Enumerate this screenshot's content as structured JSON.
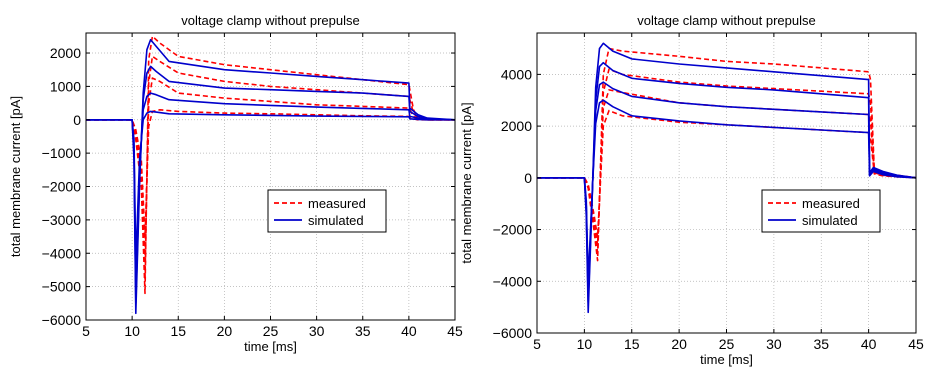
{
  "chart_data": [
    {
      "type": "line",
      "title": "voltage clamp without prepulse",
      "xlabel": "time [ms]",
      "ylabel": "total membrane current [pA]",
      "xlim": [
        5,
        45
      ],
      "ylim": [
        -6000,
        2600
      ],
      "xticks": [
        5,
        10,
        15,
        20,
        25,
        30,
        35,
        40,
        45
      ],
      "yticks": [
        -6000,
        -5000,
        -4000,
        -3000,
        -2000,
        -1000,
        0,
        1000,
        2000
      ],
      "ytick_labels": [
        "−6000",
        "−5000",
        "−4000",
        "−3000",
        "−2000",
        "−1000",
        "0",
        "1000",
        "2000"
      ],
      "grid": true,
      "legend": {
        "position": "center-right",
        "entries": [
          {
            "label": "measured",
            "style": "dashed",
            "color": "#ff0000"
          },
          {
            "label": "simulated",
            "style": "solid",
            "color": "#0000cc"
          }
        ]
      },
      "series": [
        {
          "style": "dashed",
          "color": "#ff0000",
          "x": [
            5,
            10,
            10.4,
            11,
            11.4,
            11.8,
            12.2,
            13,
            15,
            20,
            25,
            30,
            35,
            40,
            40.5,
            41,
            42,
            45
          ],
          "y": [
            0,
            0,
            -600,
            -2000,
            -5200,
            1800,
            2500,
            2300,
            1900,
            1650,
            1500,
            1350,
            1200,
            1050,
            300,
            50,
            0,
            0
          ]
        },
        {
          "style": "dashed",
          "color": "#ff0000",
          "x": [
            5,
            10,
            10.4,
            11,
            11.4,
            11.8,
            12.2,
            13,
            15,
            20,
            25,
            30,
            35,
            40,
            40.5,
            41,
            42,
            45
          ],
          "y": [
            0,
            0,
            -500,
            -1800,
            -4800,
            1100,
            1900,
            1750,
            1400,
            1150,
            1000,
            900,
            800,
            700,
            200,
            40,
            0,
            0
          ]
        },
        {
          "style": "dashed",
          "color": "#ff0000",
          "x": [
            5,
            10,
            10.4,
            11,
            11.4,
            11.8,
            12.2,
            13,
            15,
            20,
            25,
            30,
            35,
            40,
            40.5,
            41,
            42,
            45
          ],
          "y": [
            0,
            0,
            -400,
            -1500,
            -4200,
            500,
            1250,
            1150,
            800,
            650,
            550,
            450,
            400,
            350,
            100,
            20,
            0,
            0
          ]
        },
        {
          "style": "dashed",
          "color": "#ff0000",
          "x": [
            5,
            10,
            10.4,
            11,
            11.4,
            11.8,
            12.2,
            13,
            15,
            20,
            25,
            30,
            35,
            40,
            40.5,
            41,
            42,
            45
          ],
          "y": [
            0,
            0,
            -300,
            -1200,
            -3500,
            -200,
            250,
            300,
            250,
            200,
            180,
            150,
            120,
            100,
            30,
            0,
            0,
            0
          ]
        },
        {
          "style": "solid",
          "color": "#0000cc",
          "x": [
            5,
            10,
            10.2,
            10.4,
            10.8,
            11.2,
            11.6,
            12,
            12.6,
            14,
            20,
            25,
            30,
            35,
            40,
            40.1,
            41,
            42,
            45
          ],
          "y": [
            0,
            0,
            -1200,
            -5800,
            -2000,
            800,
            2100,
            2400,
            2200,
            1750,
            1500,
            1400,
            1300,
            1200,
            1100,
            350,
            150,
            50,
            0
          ]
        },
        {
          "style": "solid",
          "color": "#0000cc",
          "x": [
            5,
            10,
            10.2,
            10.4,
            10.8,
            11.2,
            11.6,
            12,
            12.6,
            14,
            20,
            25,
            30,
            35,
            40,
            40.1,
            41,
            42,
            45
          ],
          "y": [
            0,
            0,
            -1000,
            -5500,
            -1800,
            600,
            1400,
            1600,
            1450,
            1150,
            950,
            900,
            850,
            800,
            700,
            250,
            100,
            30,
            0
          ]
        },
        {
          "style": "solid",
          "color": "#0000cc",
          "x": [
            5,
            10,
            10.2,
            10.4,
            10.8,
            11.2,
            11.6,
            12,
            12.6,
            14,
            20,
            25,
            30,
            35,
            40,
            40.1,
            41,
            42,
            45
          ],
          "y": [
            0,
            0,
            -800,
            -5000,
            -1500,
            300,
            700,
            800,
            750,
            600,
            480,
            430,
            380,
            340,
            300,
            100,
            50,
            10,
            0
          ]
        },
        {
          "style": "solid",
          "color": "#0000cc",
          "x": [
            5,
            10,
            10.2,
            10.4,
            10.8,
            11.2,
            11.6,
            12,
            12.6,
            14,
            20,
            25,
            30,
            35,
            40,
            40.1,
            41,
            42,
            45
          ],
          "y": [
            0,
            0,
            -600,
            -4300,
            -1200,
            0,
            200,
            250,
            230,
            180,
            150,
            130,
            110,
            100,
            90,
            30,
            10,
            0,
            0
          ]
        }
      ]
    },
    {
      "type": "line",
      "title": "voltage clamp without prepulse",
      "xlabel": "time [ms]",
      "ylabel": "total membrane current [pA]",
      "xlim": [
        5,
        45
      ],
      "ylim": [
        -6000,
        5600
      ],
      "xticks": [
        5,
        10,
        15,
        20,
        25,
        30,
        35,
        40,
        45
      ],
      "yticks": [
        -6000,
        -4000,
        -2000,
        0,
        2000,
        4000
      ],
      "ytick_labels": [
        "−6000",
        "−4000",
        "−2000",
        "0",
        "2000",
        "4000"
      ],
      "grid": true,
      "legend": {
        "position": "lower-right",
        "entries": [
          {
            "label": "measured",
            "style": "dashed",
            "color": "#ff0000"
          },
          {
            "label": "simulated",
            "style": "solid",
            "color": "#0000cc"
          }
        ]
      },
      "series": [
        {
          "style": "dashed",
          "color": "#ff0000",
          "x": [
            5,
            10,
            10.4,
            11,
            11.4,
            12,
            12.6,
            14,
            20,
            25,
            30,
            35,
            40,
            40.2,
            40.6,
            41.5,
            43,
            45
          ],
          "y": [
            0,
            0,
            -400,
            -2000,
            -3200,
            4000,
            5000,
            4900,
            4700,
            4500,
            4400,
            4250,
            4100,
            3800,
            300,
            200,
            100,
            0
          ]
        },
        {
          "style": "dashed",
          "color": "#ff0000",
          "x": [
            5,
            10,
            10.4,
            11,
            11.4,
            12,
            12.6,
            14,
            20,
            25,
            30,
            35,
            40,
            40.2,
            40.6,
            41.5,
            43,
            45
          ],
          "y": [
            0,
            0,
            -350,
            -1800,
            -2900,
            3300,
            4200,
            4000,
            3700,
            3550,
            3450,
            3350,
            3250,
            2900,
            250,
            150,
            80,
            0
          ]
        },
        {
          "style": "dashed",
          "color": "#ff0000",
          "x": [
            5,
            10,
            10.4,
            11,
            11.4,
            12,
            12.6,
            14,
            20,
            25,
            30,
            35,
            40,
            40.2,
            40.6,
            41.5,
            43,
            45
          ],
          "y": [
            0,
            0,
            -300,
            -1600,
            -2600,
            2700,
            3400,
            3300,
            2900,
            2750,
            2650,
            2550,
            2450,
            2200,
            200,
            100,
            50,
            0
          ]
        },
        {
          "style": "dashed",
          "color": "#ff0000",
          "x": [
            5,
            10,
            10.4,
            11,
            11.4,
            12,
            12.6,
            14,
            20,
            25,
            30,
            35,
            40,
            40.2,
            40.6,
            41.5,
            43,
            45
          ],
          "y": [
            0,
            0,
            -250,
            -1400,
            -2300,
            2000,
            2600,
            2400,
            2150,
            2050,
            1950,
            1850,
            1750,
            1550,
            150,
            80,
            40,
            0
          ]
        },
        {
          "style": "solid",
          "color": "#0000cc",
          "x": [
            5,
            10,
            10.2,
            10.4,
            10.8,
            11.2,
            11.6,
            12,
            13,
            15,
            20,
            25,
            30,
            35,
            40,
            40.1,
            40.5,
            41.5,
            43,
            45
          ],
          "y": [
            0,
            0,
            -1500,
            -5200,
            -1000,
            3500,
            5000,
            5200,
            4900,
            4600,
            4400,
            4250,
            4100,
            3950,
            3800,
            200,
            400,
            250,
            100,
            0
          ]
        },
        {
          "style": "solid",
          "color": "#0000cc",
          "x": [
            5,
            10,
            10.2,
            10.4,
            10.8,
            11.2,
            11.6,
            12,
            13,
            15,
            20,
            25,
            30,
            35,
            40,
            40.1,
            40.5,
            41.5,
            43,
            45
          ],
          "y": [
            0,
            0,
            -1300,
            -4800,
            -900,
            3000,
            4300,
            4450,
            4150,
            3850,
            3650,
            3500,
            3400,
            3250,
            3100,
            150,
            350,
            200,
            80,
            0
          ]
        },
        {
          "style": "solid",
          "color": "#0000cc",
          "x": [
            5,
            10,
            10.2,
            10.4,
            10.8,
            11.2,
            11.6,
            12,
            13,
            15,
            20,
            25,
            30,
            35,
            40,
            40.1,
            40.5,
            41.5,
            43,
            45
          ],
          "y": [
            0,
            0,
            -1100,
            -4400,
            -800,
            2600,
            3600,
            3700,
            3450,
            3150,
            2900,
            2750,
            2650,
            2550,
            2450,
            100,
            300,
            150,
            60,
            0
          ]
        },
        {
          "style": "solid",
          "color": "#0000cc",
          "x": [
            5,
            10,
            10.2,
            10.4,
            10.8,
            11.2,
            11.6,
            12,
            13,
            15,
            20,
            25,
            30,
            35,
            40,
            40.1,
            40.5,
            41.5,
            43,
            45
          ],
          "y": [
            0,
            0,
            -900,
            -4000,
            -700,
            2100,
            2900,
            3000,
            2750,
            2400,
            2200,
            2050,
            1950,
            1850,
            1750,
            80,
            250,
            120,
            40,
            0
          ]
        }
      ]
    }
  ]
}
